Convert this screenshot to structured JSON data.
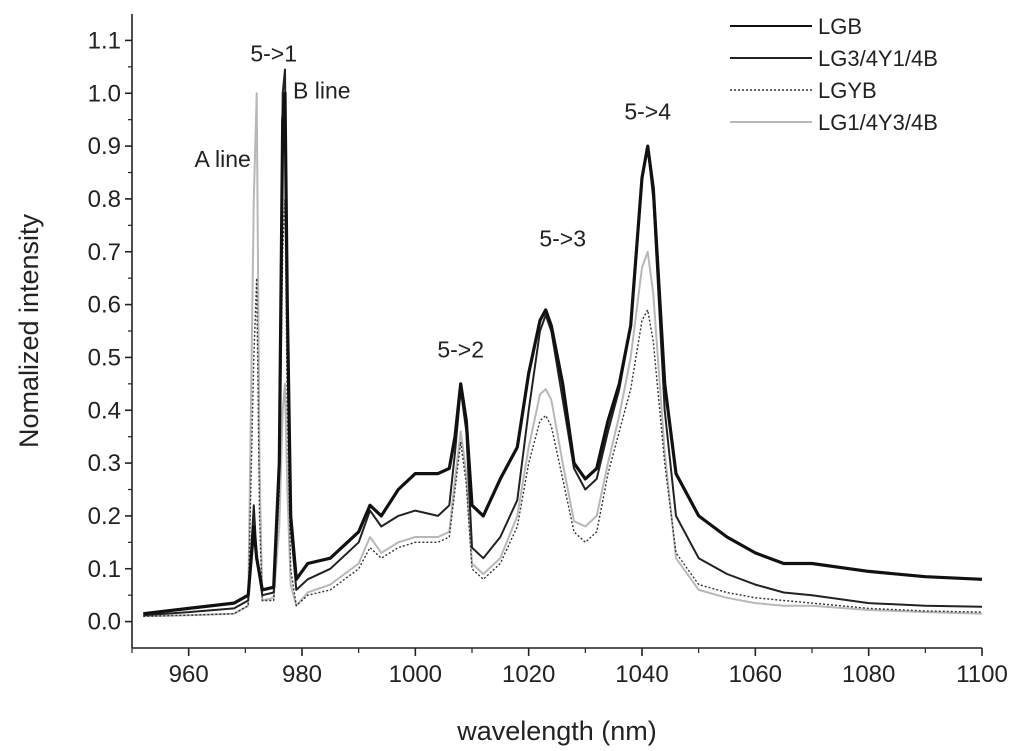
{
  "chart_data": {
    "type": "line",
    "title": "",
    "xlabel": "wavelength (nm)",
    "ylabel": "Nomalized intensity",
    "xlim": [
      950,
      1100
    ],
    "ylim": [
      -0.05,
      1.15
    ],
    "xticks": [
      960,
      980,
      1000,
      1020,
      1040,
      1060,
      1080,
      1100
    ],
    "xtick_labels": [
      "960",
      "980",
      "1000",
      "1020",
      "1040",
      "1060",
      "1080",
      "1100"
    ],
    "yticks": [
      0.0,
      0.1,
      0.2,
      0.3,
      0.4,
      0.5,
      0.6,
      0.7,
      0.8,
      0.9,
      1.0,
      1.1
    ],
    "ytick_labels": [
      "0.0",
      "0.1",
      "0.2",
      "0.3",
      "0.4",
      "0.5",
      "0.6",
      "0.7",
      "0.8",
      "0.9",
      "1.0",
      "1.1"
    ],
    "grid": false,
    "legend_position": "top-right",
    "annotations": [
      {
        "text": "5->1",
        "x": 975,
        "y": 1.06
      },
      {
        "text": "B line",
        "x": 983.5,
        "y": 0.99
      },
      {
        "text": "A line",
        "x": 966,
        "y": 0.86
      },
      {
        "text": "5->2",
        "x": 1008,
        "y": 0.5
      },
      {
        "text": "5->3",
        "x": 1026,
        "y": 0.71
      },
      {
        "text": "5->4",
        "x": 1041,
        "y": 0.95
      }
    ],
    "series": [
      {
        "name": "LGB",
        "color": "#111111",
        "width": 3.2,
        "dash": "",
        "points": [
          [
            952,
            0.015
          ],
          [
            960,
            0.025
          ],
          [
            968,
            0.035
          ],
          [
            970.5,
            0.05
          ],
          [
            971.5,
            0.18
          ],
          [
            972,
            0.12
          ],
          [
            973,
            0.06
          ],
          [
            975,
            0.065
          ],
          [
            976,
            0.3
          ],
          [
            976.6,
            0.95
          ],
          [
            977,
            1.0
          ],
          [
            977.4,
            0.6
          ],
          [
            978,
            0.2
          ],
          [
            979,
            0.08
          ],
          [
            981,
            0.11
          ],
          [
            985,
            0.12
          ],
          [
            990,
            0.17
          ],
          [
            992,
            0.22
          ],
          [
            994,
            0.2
          ],
          [
            997,
            0.25
          ],
          [
            1000,
            0.28
          ],
          [
            1004,
            0.28
          ],
          [
            1006,
            0.29
          ],
          [
            1007,
            0.35
          ],
          [
            1008,
            0.45
          ],
          [
            1009,
            0.38
          ],
          [
            1010,
            0.22
          ],
          [
            1012,
            0.2
          ],
          [
            1015,
            0.27
          ],
          [
            1018,
            0.33
          ],
          [
            1020,
            0.47
          ],
          [
            1022,
            0.57
          ],
          [
            1023,
            0.59
          ],
          [
            1024,
            0.56
          ],
          [
            1026,
            0.45
          ],
          [
            1028,
            0.3
          ],
          [
            1030,
            0.27
          ],
          [
            1032,
            0.29
          ],
          [
            1034,
            0.38
          ],
          [
            1036,
            0.45
          ],
          [
            1038,
            0.56
          ],
          [
            1040,
            0.84
          ],
          [
            1041,
            0.9
          ],
          [
            1042,
            0.82
          ],
          [
            1044,
            0.45
          ],
          [
            1046,
            0.28
          ],
          [
            1050,
            0.2
          ],
          [
            1055,
            0.16
          ],
          [
            1060,
            0.13
          ],
          [
            1065,
            0.11
          ],
          [
            1070,
            0.11
          ],
          [
            1080,
            0.095
          ],
          [
            1090,
            0.085
          ],
          [
            1100,
            0.08
          ]
        ]
      },
      {
        "name": "LG3/4Y1/4B",
        "color": "#222222",
        "width": 2.0,
        "dash": "",
        "points": [
          [
            952,
            0.012
          ],
          [
            960,
            0.018
          ],
          [
            968,
            0.025
          ],
          [
            970.5,
            0.04
          ],
          [
            971.5,
            0.22
          ],
          [
            972,
            0.12
          ],
          [
            973,
            0.05
          ],
          [
            975,
            0.055
          ],
          [
            976,
            0.3
          ],
          [
            976.6,
            1.0
          ],
          [
            977,
            1.045
          ],
          [
            977.4,
            0.6
          ],
          [
            978,
            0.18
          ],
          [
            979,
            0.06
          ],
          [
            981,
            0.08
          ],
          [
            985,
            0.1
          ],
          [
            990,
            0.15
          ],
          [
            992,
            0.21
          ],
          [
            994,
            0.18
          ],
          [
            997,
            0.2
          ],
          [
            1000,
            0.21
          ],
          [
            1004,
            0.2
          ],
          [
            1006,
            0.22
          ],
          [
            1007,
            0.32
          ],
          [
            1008,
            0.44
          ],
          [
            1009,
            0.36
          ],
          [
            1010,
            0.14
          ],
          [
            1012,
            0.12
          ],
          [
            1015,
            0.16
          ],
          [
            1018,
            0.23
          ],
          [
            1020,
            0.4
          ],
          [
            1022,
            0.55
          ],
          [
            1023,
            0.58
          ],
          [
            1024,
            0.55
          ],
          [
            1026,
            0.42
          ],
          [
            1028,
            0.29
          ],
          [
            1030,
            0.25
          ],
          [
            1032,
            0.27
          ],
          [
            1034,
            0.36
          ],
          [
            1036,
            0.44
          ],
          [
            1038,
            0.56
          ],
          [
            1040,
            0.84
          ],
          [
            1041,
            0.9
          ],
          [
            1042,
            0.8
          ],
          [
            1044,
            0.4
          ],
          [
            1046,
            0.2
          ],
          [
            1050,
            0.12
          ],
          [
            1055,
            0.09
          ],
          [
            1060,
            0.07
          ],
          [
            1065,
            0.055
          ],
          [
            1070,
            0.05
          ],
          [
            1080,
            0.035
          ],
          [
            1090,
            0.03
          ],
          [
            1100,
            0.028
          ]
        ]
      },
      {
        "name": "LGYB",
        "color": "#333333",
        "width": 1.4,
        "dash": "2,2",
        "points": [
          [
            952,
            0.01
          ],
          [
            960,
            0.012
          ],
          [
            968,
            0.015
          ],
          [
            970.5,
            0.03
          ],
          [
            971.5,
            0.5
          ],
          [
            972,
            0.65
          ],
          [
            972.5,
            0.2
          ],
          [
            973,
            0.04
          ],
          [
            975,
            0.04
          ],
          [
            976,
            0.25
          ],
          [
            976.6,
            0.7
          ],
          [
            977,
            0.8
          ],
          [
            977.4,
            0.4
          ],
          [
            978,
            0.1
          ],
          [
            979,
            0.03
          ],
          [
            981,
            0.05
          ],
          [
            985,
            0.06
          ],
          [
            990,
            0.1
          ],
          [
            992,
            0.14
          ],
          [
            994,
            0.12
          ],
          [
            997,
            0.14
          ],
          [
            1000,
            0.15
          ],
          [
            1004,
            0.15
          ],
          [
            1006,
            0.16
          ],
          [
            1007,
            0.25
          ],
          [
            1008,
            0.34
          ],
          [
            1009,
            0.26
          ],
          [
            1010,
            0.1
          ],
          [
            1012,
            0.08
          ],
          [
            1015,
            0.11
          ],
          [
            1018,
            0.18
          ],
          [
            1020,
            0.3
          ],
          [
            1022,
            0.38
          ],
          [
            1023,
            0.39
          ],
          [
            1024,
            0.37
          ],
          [
            1026,
            0.27
          ],
          [
            1028,
            0.17
          ],
          [
            1030,
            0.15
          ],
          [
            1032,
            0.17
          ],
          [
            1034,
            0.28
          ],
          [
            1036,
            0.36
          ],
          [
            1038,
            0.44
          ],
          [
            1040,
            0.57
          ],
          [
            1041,
            0.59
          ],
          [
            1042,
            0.53
          ],
          [
            1044,
            0.3
          ],
          [
            1046,
            0.13
          ],
          [
            1050,
            0.07
          ],
          [
            1055,
            0.055
          ],
          [
            1060,
            0.045
          ],
          [
            1065,
            0.04
          ],
          [
            1070,
            0.035
          ],
          [
            1080,
            0.025
          ],
          [
            1090,
            0.02
          ],
          [
            1100,
            0.018
          ]
        ]
      },
      {
        "name": "LG1/4Y3/4B",
        "color": "#b8b8b8",
        "width": 2.0,
        "dash": "",
        "points": [
          [
            952,
            0.01
          ],
          [
            960,
            0.012
          ],
          [
            968,
            0.015
          ],
          [
            970.5,
            0.03
          ],
          [
            971.5,
            0.8
          ],
          [
            972,
            1.0
          ],
          [
            972.5,
            0.3
          ],
          [
            973,
            0.04
          ],
          [
            975,
            0.045
          ],
          [
            976,
            0.18
          ],
          [
            976.6,
            0.4
          ],
          [
            977,
            0.45
          ],
          [
            977.4,
            0.25
          ],
          [
            978,
            0.07
          ],
          [
            979,
            0.03
          ],
          [
            981,
            0.055
          ],
          [
            985,
            0.07
          ],
          [
            990,
            0.11
          ],
          [
            992,
            0.16
          ],
          [
            994,
            0.13
          ],
          [
            997,
            0.15
          ],
          [
            1000,
            0.16
          ],
          [
            1004,
            0.16
          ],
          [
            1006,
            0.17
          ],
          [
            1007,
            0.27
          ],
          [
            1008,
            0.36
          ],
          [
            1009,
            0.28
          ],
          [
            1010,
            0.11
          ],
          [
            1012,
            0.09
          ],
          [
            1015,
            0.12
          ],
          [
            1018,
            0.2
          ],
          [
            1020,
            0.33
          ],
          [
            1022,
            0.43
          ],
          [
            1023,
            0.44
          ],
          [
            1024,
            0.42
          ],
          [
            1026,
            0.3
          ],
          [
            1028,
            0.19
          ],
          [
            1030,
            0.18
          ],
          [
            1032,
            0.2
          ],
          [
            1034,
            0.3
          ],
          [
            1036,
            0.39
          ],
          [
            1038,
            0.5
          ],
          [
            1040,
            0.67
          ],
          [
            1041,
            0.7
          ],
          [
            1042,
            0.62
          ],
          [
            1044,
            0.32
          ],
          [
            1046,
            0.12
          ],
          [
            1050,
            0.06
          ],
          [
            1055,
            0.045
          ],
          [
            1060,
            0.035
          ],
          [
            1065,
            0.03
          ],
          [
            1070,
            0.03
          ],
          [
            1080,
            0.022
          ],
          [
            1090,
            0.018
          ],
          [
            1100,
            0.015
          ]
        ]
      }
    ]
  }
}
